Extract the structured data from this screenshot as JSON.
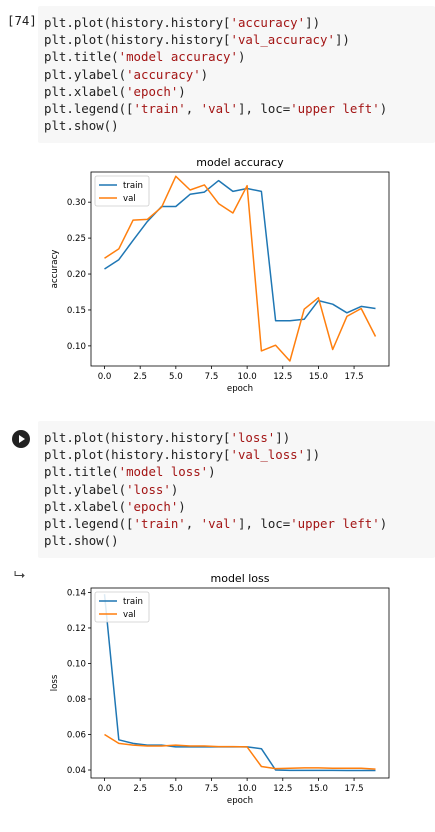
{
  "cells": [
    {
      "prompt": "[74]",
      "code_lines": [
        [
          {
            "t": "plt.plot(history.history["
          },
          {
            "t": "'accuracy'",
            "s": 1
          },
          {
            "t": "])"
          }
        ],
        [
          {
            "t": "plt.plot(history.history["
          },
          {
            "t": "'val_accuracy'",
            "s": 1
          },
          {
            "t": "])"
          }
        ],
        [
          {
            "t": "plt.title("
          },
          {
            "t": "'model accuracy'",
            "s": 1
          },
          {
            "t": ")"
          }
        ],
        [
          {
            "t": "plt.ylabel("
          },
          {
            "t": "'accuracy'",
            "s": 1
          },
          {
            "t": ")"
          }
        ],
        [
          {
            "t": "plt.xlabel("
          },
          {
            "t": "'epoch'",
            "s": 1
          },
          {
            "t": ")"
          }
        ],
        [
          {
            "t": "plt.legend(["
          },
          {
            "t": "'train'",
            "s": 1
          },
          {
            "t": ", "
          },
          {
            "t": "'val'",
            "s": 1
          },
          {
            "t": "], loc="
          },
          {
            "t": "'upper left'",
            "s": 1
          },
          {
            "t": ")"
          }
        ],
        [
          {
            "t": "plt.show()"
          }
        ]
      ]
    },
    {
      "prompt": "",
      "code_lines": [
        [
          {
            "t": "plt.plot(history.history["
          },
          {
            "t": "'loss'",
            "s": 1
          },
          {
            "t": "])"
          }
        ],
        [
          {
            "t": "plt.plot(history.history["
          },
          {
            "t": "'val_loss'",
            "s": 1
          },
          {
            "t": "])"
          }
        ],
        [
          {
            "t": "plt.title("
          },
          {
            "t": "'model loss'",
            "s": 1
          },
          {
            "t": ")"
          }
        ],
        [
          {
            "t": "plt.ylabel("
          },
          {
            "t": "'loss'",
            "s": 1
          },
          {
            "t": ")"
          }
        ],
        [
          {
            "t": "plt.xlabel("
          },
          {
            "t": "'epoch'",
            "s": 1
          },
          {
            "t": ")"
          }
        ],
        [
          {
            "t": "plt.legend(["
          },
          {
            "t": "'train'",
            "s": 1
          },
          {
            "t": ", "
          },
          {
            "t": "'val'",
            "s": 1
          },
          {
            "t": "], loc="
          },
          {
            "t": "'upper left'",
            "s": 1
          },
          {
            "t": ")"
          }
        ],
        [
          {
            "t": "plt.show()"
          }
        ]
      ]
    }
  ],
  "icons": {
    "run": "play-circle-icon",
    "output": "output-arrow-icon"
  },
  "colors": {
    "train": "#1f77b4",
    "val": "#ff7f0e",
    "code_bg": "#f7f7f7",
    "string": "#a31515"
  },
  "chart_data": [
    {
      "type": "line",
      "title": "model accuracy",
      "xlabel": "epoch",
      "ylabel": "accuracy",
      "xlim": [
        -0.95,
        19.95
      ],
      "ylim": [
        0.072,
        0.342
      ],
      "xticks": [
        0.0,
        2.5,
        5.0,
        7.5,
        10.0,
        12.5,
        15.0,
        17.5
      ],
      "xtick_labels": [
        "0.0",
        "2.5",
        "5.0",
        "7.5",
        "10.0",
        "12.5",
        "15.0",
        "17.5"
      ],
      "yticks": [
        0.1,
        0.15,
        0.2,
        0.25,
        0.3
      ],
      "ytick_labels": [
        "0.10",
        "0.15",
        "0.20",
        "0.25",
        "0.30"
      ],
      "legend": "upper left",
      "x": [
        0,
        1,
        2,
        3,
        4,
        5,
        6,
        7,
        8,
        9,
        10,
        11,
        12,
        13,
        14,
        15,
        16,
        17,
        18,
        19
      ],
      "series": [
        {
          "name": "train",
          "values": [
            0.207,
            0.22,
            0.247,
            0.273,
            0.294,
            0.294,
            0.311,
            0.314,
            0.33,
            0.315,
            0.319,
            0.315,
            0.135,
            0.135,
            0.137,
            0.163,
            0.158,
            0.146,
            0.155,
            0.152
          ]
        },
        {
          "name": "val",
          "values": [
            0.222,
            0.235,
            0.275,
            0.276,
            0.293,
            0.336,
            0.317,
            0.324,
            0.298,
            0.285,
            0.323,
            0.093,
            0.101,
            0.079,
            0.151,
            0.167,
            0.095,
            0.141,
            0.152,
            0.113
          ]
        }
      ]
    },
    {
      "type": "line",
      "title": "model loss",
      "xlabel": "epoch",
      "ylabel": "loss",
      "xlim": [
        -0.95,
        19.95
      ],
      "ylim": [
        0.0355,
        0.1425
      ],
      "xticks": [
        0.0,
        2.5,
        5.0,
        7.5,
        10.0,
        12.5,
        15.0,
        17.5
      ],
      "xtick_labels": [
        "0.0",
        "2.5",
        "5.0",
        "7.5",
        "10.0",
        "12.5",
        "15.0",
        "17.5"
      ],
      "yticks": [
        0.04,
        0.06,
        0.08,
        0.1,
        0.12,
        0.14
      ],
      "ytick_labels": [
        "0.04",
        "0.06",
        "0.08",
        "0.10",
        "0.12",
        "0.14"
      ],
      "legend": "upper left",
      "x": [
        0,
        1,
        2,
        3,
        4,
        5,
        6,
        7,
        8,
        9,
        10,
        11,
        12,
        13,
        14,
        15,
        16,
        17,
        18,
        19
      ],
      "series": [
        {
          "name": "train",
          "values": [
            0.139,
            0.057,
            0.055,
            0.054,
            0.054,
            0.053,
            0.053,
            0.053,
            0.053,
            0.053,
            0.053,
            0.052,
            0.04,
            0.0398,
            0.0398,
            0.0398,
            0.0398,
            0.0397,
            0.0397,
            0.0397
          ]
        },
        {
          "name": "val",
          "values": [
            0.06,
            0.055,
            0.054,
            0.0535,
            0.0535,
            0.054,
            0.0535,
            0.0535,
            0.0532,
            0.0532,
            0.053,
            0.042,
            0.0408,
            0.041,
            0.0412,
            0.0412,
            0.041,
            0.041,
            0.041,
            0.0405
          ]
        }
      ]
    }
  ]
}
